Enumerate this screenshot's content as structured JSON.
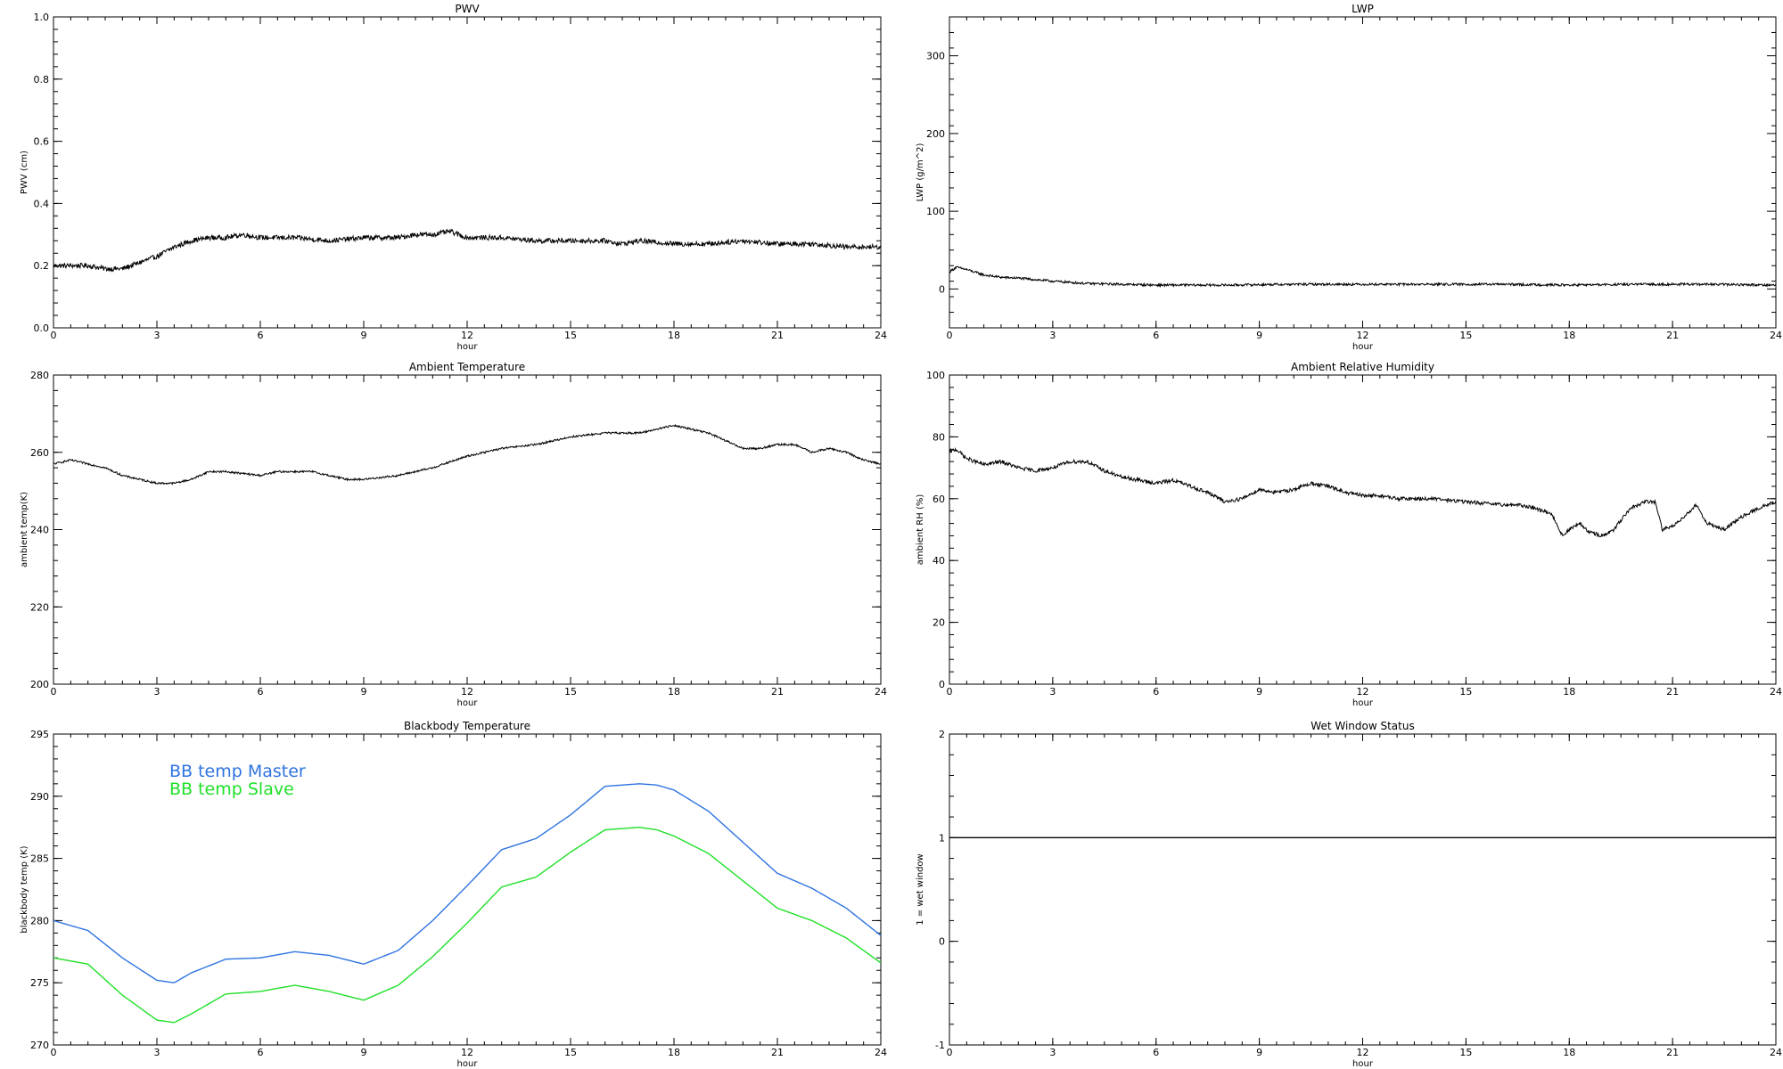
{
  "chart_data": [
    {
      "type": "line",
      "title": "PWV",
      "xlabel": "hour",
      "ylabel": "PWV (cm)",
      "xlim": [
        0,
        24
      ],
      "ylim": [
        0.0,
        1.0
      ],
      "xticks": [
        "0",
        "3",
        "6",
        "9",
        "12",
        "15",
        "18",
        "21",
        "24"
      ],
      "yticks": [
        "0.0",
        "0.2",
        "0.4",
        "0.6",
        "0.8",
        "1.0"
      ],
      "series": [
        {
          "color": "#000000",
          "noise": 0.008,
          "x": [
            0,
            0.5,
            1,
            1.5,
            2,
            2.5,
            3,
            3.5,
            4,
            4.5,
            5,
            5.5,
            6,
            7,
            8,
            9,
            10,
            10.5,
            11,
            11.5,
            12,
            13,
            14,
            15,
            16,
            16.5,
            17,
            18,
            19,
            20,
            21,
            22,
            23,
            23.5,
            24
          ],
          "y": [
            0.2,
            0.2,
            0.2,
            0.19,
            0.19,
            0.21,
            0.23,
            0.26,
            0.28,
            0.29,
            0.29,
            0.3,
            0.29,
            0.29,
            0.28,
            0.29,
            0.29,
            0.3,
            0.3,
            0.31,
            0.29,
            0.29,
            0.28,
            0.28,
            0.28,
            0.27,
            0.28,
            0.27,
            0.27,
            0.28,
            0.27,
            0.27,
            0.26,
            0.26,
            0.26
          ]
        }
      ]
    },
    {
      "type": "line",
      "title": "LWP",
      "xlabel": "hour",
      "ylabel": "LWP (g/m^2)",
      "xlim": [
        0,
        24
      ],
      "ylim": [
        -50,
        350
      ],
      "xticks": [
        "0",
        "3",
        "6",
        "9",
        "12",
        "15",
        "18",
        "21",
        "24"
      ],
      "yticks": [
        "0",
        "100",
        "200",
        "300"
      ],
      "series": [
        {
          "color": "#000000",
          "noise": 1.5,
          "x": [
            0,
            0.2,
            0.5,
            1,
            1.5,
            2,
            3,
            4,
            5,
            6,
            8,
            10,
            12,
            14,
            16,
            18,
            20,
            22,
            24
          ],
          "y": [
            22,
            28,
            25,
            18,
            15,
            14,
            10,
            7,
            6,
            5,
            5,
            6,
            6,
            6,
            6,
            5,
            6,
            6,
            5
          ]
        }
      ]
    },
    {
      "type": "line",
      "title": "Ambient Temperature",
      "xlabel": "hour",
      "ylabel": "ambient temp(K)",
      "xlim": [
        0,
        24
      ],
      "ylim": [
        200,
        280
      ],
      "xticks": [
        "0",
        "3",
        "6",
        "9",
        "12",
        "15",
        "18",
        "21",
        "24"
      ],
      "yticks": [
        "200",
        "220",
        "240",
        "260",
        "280"
      ],
      "series": [
        {
          "color": "#000000",
          "noise": 0.25,
          "x": [
            0,
            0.5,
            1,
            1.5,
            2,
            2.5,
            3,
            3.5,
            4,
            4.5,
            5,
            6,
            6.5,
            7,
            7.5,
            8,
            8.5,
            9,
            10,
            11,
            12,
            13,
            14,
            15,
            16,
            17,
            17.5,
            18,
            18.5,
            19,
            19.5,
            20,
            20.5,
            21,
            21.5,
            22,
            22.5,
            23,
            23.5,
            24
          ],
          "y": [
            257,
            258,
            257,
            256,
            254,
            253,
            252,
            252,
            253,
            255,
            255,
            254,
            255,
            255,
            255,
            254,
            253,
            253,
            254,
            256,
            259,
            261,
            262,
            264,
            265,
            265,
            266,
            267,
            266,
            265,
            263,
            261,
            261,
            262,
            262,
            260,
            261,
            260,
            258,
            257
          ]
        }
      ]
    },
    {
      "type": "line",
      "title": "Ambient Relative Humidity",
      "xlabel": "hour",
      "ylabel": "ambient RH (%)",
      "xlim": [
        0,
        24
      ],
      "ylim": [
        0,
        100
      ],
      "xticks": [
        "0",
        "3",
        "6",
        "9",
        "12",
        "15",
        "18",
        "21",
        "24"
      ],
      "yticks": [
        "0",
        "20",
        "40",
        "60",
        "80",
        "100"
      ],
      "series": [
        {
          "color": "#000000",
          "noise": 0.6,
          "x": [
            0,
            0.2,
            0.5,
            1,
            1.5,
            2,
            2.5,
            3,
            3.5,
            4,
            4.5,
            5,
            5.5,
            6,
            6.5,
            7,
            7.5,
            8,
            8.5,
            9,
            9.5,
            10,
            10.5,
            11,
            11.5,
            12,
            12.5,
            13,
            14,
            15,
            16,
            16.5,
            17,
            17.5,
            17.8,
            18,
            18.3,
            18.6,
            19,
            19.3,
            19.5,
            19.8,
            20.2,
            20.5,
            20.7,
            21,
            21.3,
            21.7,
            22,
            22.5,
            23,
            23.5,
            24
          ],
          "y": [
            75,
            76,
            73,
            71,
            72,
            70,
            69,
            70,
            72,
            72,
            69,
            67,
            66,
            65,
            66,
            64,
            62,
            59,
            60,
            63,
            62,
            63,
            65,
            64,
            62,
            61,
            61,
            60,
            60,
            59,
            58,
            58,
            57,
            55,
            48,
            50,
            52,
            49,
            48,
            50,
            53,
            57,
            59,
            59,
            50,
            51,
            54,
            58,
            52,
            50,
            54,
            57,
            59
          ]
        }
      ]
    },
    {
      "type": "line",
      "title": "Blackbody Temperature",
      "xlabel": "hour",
      "ylabel": "blackbody temp (K)",
      "xlim": [
        0,
        24
      ],
      "ylim": [
        270,
        295
      ],
      "xticks": [
        "0",
        "3",
        "6",
        "9",
        "12",
        "15",
        "18",
        "21",
        "24"
      ],
      "yticks": [
        "270",
        "275",
        "280",
        "285",
        "290",
        "295"
      ],
      "legend": [
        "BB temp Master",
        "BB temp Slave"
      ],
      "series": [
        {
          "name": "BB temp Master",
          "color": "#2f73e0",
          "noise": 0,
          "x": [
            0,
            1,
            2,
            3,
            3.5,
            4,
            5,
            6,
            7,
            8,
            9,
            10,
            11,
            12,
            13,
            14,
            15,
            16,
            17,
            17.5,
            18,
            19,
            20,
            21,
            22,
            23,
            24
          ],
          "y": [
            280,
            279.2,
            277,
            275.2,
            275,
            275.8,
            276.9,
            277,
            277.5,
            277.2,
            276.5,
            277.6,
            280,
            282.8,
            285.7,
            286.6,
            288.5,
            290.8,
            291,
            290.9,
            290.5,
            288.8,
            286.3,
            283.8,
            282.6,
            281,
            278.8
          ]
        },
        {
          "name": "BB temp Slave",
          "color": "#1fe028",
          "noise": 0,
          "x": [
            0,
            1,
            2,
            3,
            3.5,
            4,
            5,
            6,
            7,
            8,
            9,
            10,
            11,
            12,
            13,
            14,
            15,
            16,
            17,
            17.5,
            18,
            19,
            20,
            21,
            22,
            23,
            24
          ],
          "y": [
            277,
            276.5,
            274,
            272,
            271.8,
            272.5,
            274.1,
            274.3,
            274.8,
            274.3,
            273.6,
            274.8,
            277.1,
            279.8,
            282.7,
            283.5,
            285.5,
            287.3,
            287.5,
            287.3,
            286.8,
            285.4,
            283.2,
            281,
            280,
            278.6,
            276.6
          ]
        }
      ]
    },
    {
      "type": "line",
      "title": "Wet Window Status",
      "xlabel": "hour",
      "ylabel": "1 = wet window",
      "xlim": [
        0,
        24
      ],
      "ylim": [
        -1,
        2
      ],
      "xticks": [
        "0",
        "3",
        "6",
        "9",
        "12",
        "15",
        "18",
        "21",
        "24"
      ],
      "yticks": [
        "-1",
        "0",
        "1",
        "2"
      ],
      "series": [
        {
          "color": "#000000",
          "noise": 0,
          "x": [
            0,
            24
          ],
          "y": [
            1,
            1
          ]
        }
      ]
    }
  ]
}
